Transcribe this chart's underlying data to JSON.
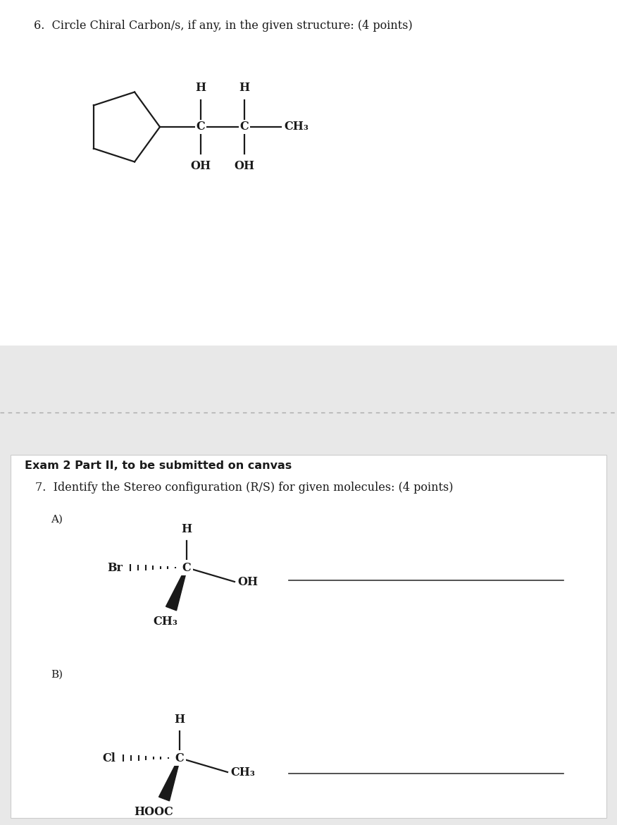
{
  "page_bg": "#e8e8e8",
  "top_section_bg": "#ffffff",
  "text_color": "#1a1a1a",
  "line_color": "#1a1a1a",
  "q6_title": "6.  Circle Chiral Carbon/s, if any, in the given structure: (4 points)",
  "q7_title": "7.  Identify the Stereo configuration (R/S) for given molecules: (4 points)",
  "exam_header": "Exam 2 Part II, to be submitted on canvas",
  "answer_line_color": "#333333",
  "dashed_line_color": "#aaaaaa"
}
